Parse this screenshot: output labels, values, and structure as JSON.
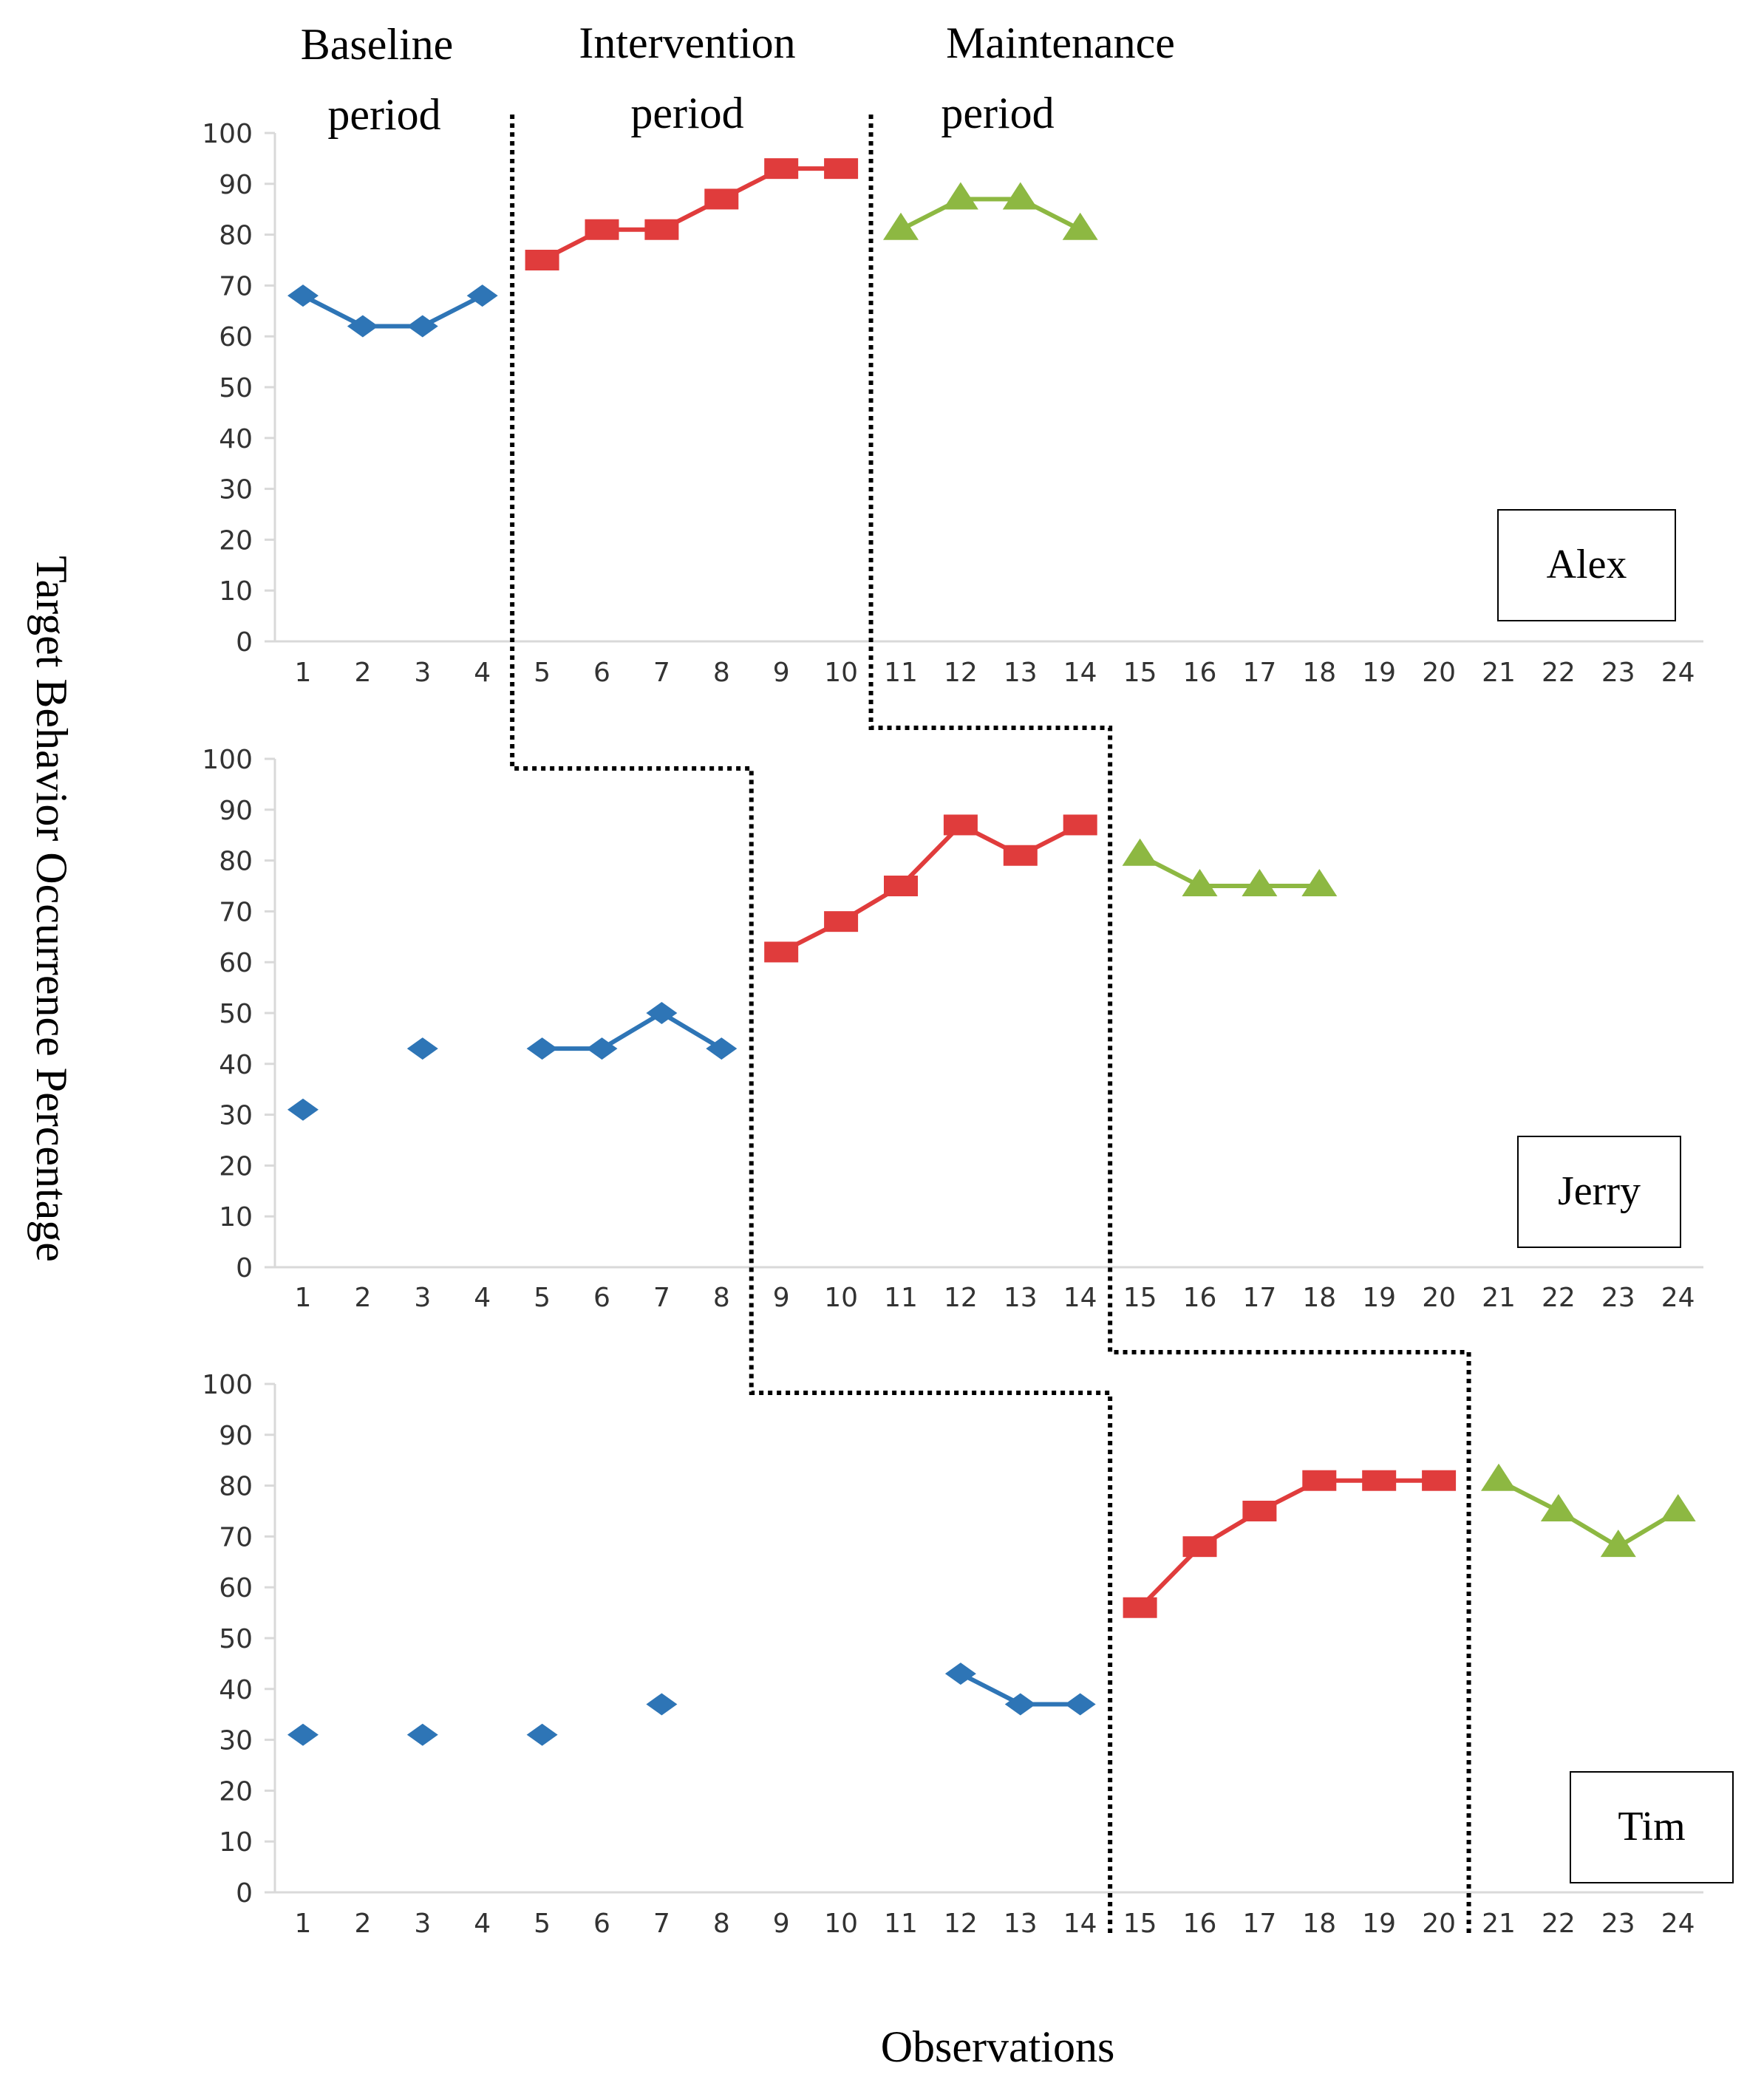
{
  "phase_titles": [
    {
      "line1": "Baseline",
      "line2": "period"
    },
    {
      "line1": "Intervention",
      "line2": "period"
    },
    {
      "line1": "Maintenance",
      "line2": "period"
    }
  ],
  "ylabel": "Target Behavior Occurrence Percentage",
  "xlabel": "Observations",
  "colors": {
    "baseline": "#2E75B6",
    "intervention": "#E03C3C",
    "maintenance": "#8DB842",
    "divider": "#000000"
  },
  "chart_data": [
    {
      "type": "line",
      "participant": "Alex",
      "x": [
        1,
        2,
        3,
        4,
        5,
        6,
        7,
        8,
        9,
        10,
        11,
        12,
        13,
        14,
        15,
        16,
        17,
        18,
        19,
        20,
        21,
        22,
        23,
        24
      ],
      "ylim": [
        0,
        100
      ],
      "yticks": [
        0,
        10,
        20,
        30,
        40,
        50,
        60,
        70,
        80,
        90,
        100
      ],
      "series": [
        {
          "name": "Baseline",
          "marker": "diamond",
          "segments": [
            [
              [
                1,
                68
              ],
              [
                2,
                62
              ],
              [
                3,
                62
              ],
              [
                4,
                68
              ]
            ]
          ]
        },
        {
          "name": "Intervention",
          "marker": "square",
          "segments": [
            [
              [
                5,
                75
              ],
              [
                6,
                81
              ],
              [
                7,
                81
              ],
              [
                8,
                87
              ],
              [
                9,
                93
              ],
              [
                10,
                93
              ]
            ]
          ]
        },
        {
          "name": "Maintenance",
          "marker": "triangle",
          "segments": [
            [
              [
                11,
                81
              ],
              [
                12,
                87
              ],
              [
                13,
                87
              ],
              [
                14,
                81
              ]
            ]
          ]
        }
      ],
      "phase_changes": [
        4.5,
        10.5
      ]
    },
    {
      "type": "line",
      "participant": "Jerry",
      "x": [
        1,
        2,
        3,
        4,
        5,
        6,
        7,
        8,
        9,
        10,
        11,
        12,
        13,
        14,
        15,
        16,
        17,
        18,
        19,
        20,
        21,
        22,
        23,
        24
      ],
      "ylim": [
        0,
        100
      ],
      "yticks": [
        0,
        10,
        20,
        30,
        40,
        50,
        60,
        70,
        80,
        90,
        100
      ],
      "series": [
        {
          "name": "Baseline",
          "marker": "diamond",
          "segments": [
            [
              [
                1,
                31
              ]
            ],
            [
              [
                3,
                43
              ]
            ],
            [
              [
                5,
                43
              ],
              [
                6,
                43
              ],
              [
                7,
                50
              ],
              [
                8,
                43
              ]
            ]
          ]
        },
        {
          "name": "Intervention",
          "marker": "square",
          "segments": [
            [
              [
                9,
                62
              ],
              [
                10,
                68
              ],
              [
                11,
                75
              ],
              [
                12,
                87
              ],
              [
                13,
                81
              ],
              [
                14,
                87
              ]
            ]
          ]
        },
        {
          "name": "Maintenance",
          "marker": "triangle",
          "segments": [
            [
              [
                15,
                81
              ],
              [
                16,
                75
              ],
              [
                17,
                75
              ],
              [
                18,
                75
              ]
            ]
          ]
        }
      ],
      "phase_changes": [
        8.5,
        14.5
      ]
    },
    {
      "type": "line",
      "participant": "Tim",
      "x": [
        1,
        2,
        3,
        4,
        5,
        6,
        7,
        8,
        9,
        10,
        11,
        12,
        13,
        14,
        15,
        16,
        17,
        18,
        19,
        20,
        21,
        22,
        23,
        24
      ],
      "ylim": [
        0,
        100
      ],
      "yticks": [
        0,
        10,
        20,
        30,
        40,
        50,
        60,
        70,
        80,
        90,
        100
      ],
      "series": [
        {
          "name": "Baseline",
          "marker": "diamond",
          "segments": [
            [
              [
                1,
                31
              ]
            ],
            [
              [
                3,
                31
              ]
            ],
            [
              [
                5,
                31
              ]
            ],
            [
              [
                7,
                37
              ]
            ],
            [
              [
                12,
                43
              ],
              [
                13,
                37
              ],
              [
                14,
                37
              ]
            ]
          ]
        },
        {
          "name": "Intervention",
          "marker": "square",
          "segments": [
            [
              [
                15,
                56
              ],
              [
                16,
                68
              ],
              [
                17,
                75
              ],
              [
                18,
                81
              ],
              [
                19,
                81
              ],
              [
                20,
                81
              ]
            ]
          ]
        },
        {
          "name": "Maintenance",
          "marker": "triangle",
          "segments": [
            [
              [
                21,
                81
              ],
              [
                22,
                75
              ],
              [
                23,
                68
              ],
              [
                24,
                75
              ]
            ]
          ]
        }
      ],
      "phase_changes": [
        14.5,
        20.5
      ]
    }
  ]
}
